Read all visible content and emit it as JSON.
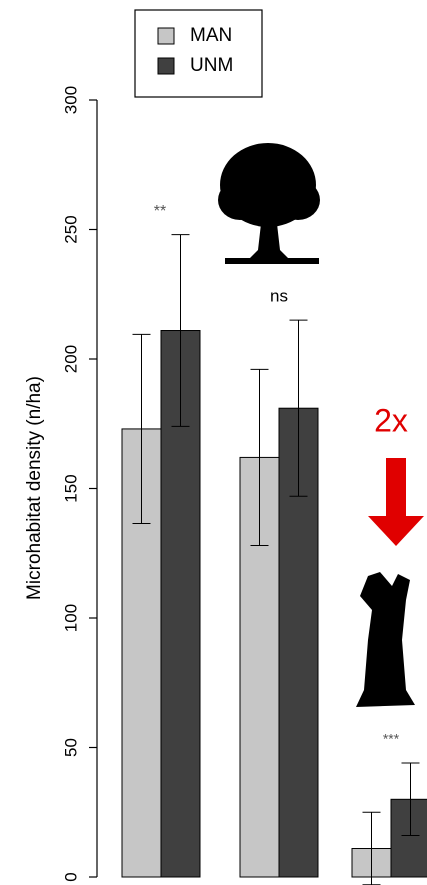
{
  "chart_data": {
    "type": "bar",
    "y_label": "Microhabitat density (n/ha)",
    "categories": [
      null,
      null,
      null
    ],
    "series": [
      {
        "name": "MAN",
        "color": "#c6c6c6",
        "values": [
          173,
          162,
          11
        ],
        "errors": [
          36.5,
          34,
          14
        ]
      },
      {
        "name": "UNM",
        "color": "#404040",
        "values": [
          211,
          181,
          30
        ],
        "errors": [
          37,
          34,
          14
        ]
      }
    ],
    "ylim": [
      0,
      300
    ],
    "yticks": [
      0,
      50,
      100,
      150,
      200,
      250,
      300
    ],
    "annotations": [
      "**",
      "ns",
      "***",
      "2x"
    ]
  }
}
